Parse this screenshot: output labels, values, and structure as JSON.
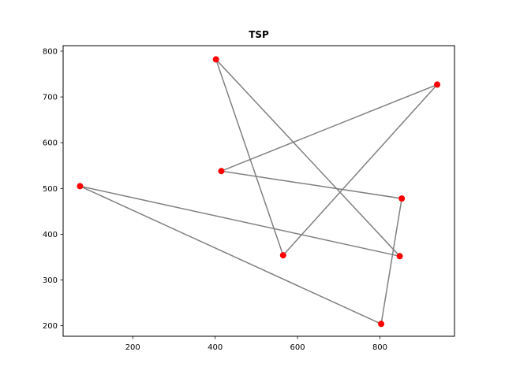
{
  "chart_data": {
    "type": "scatter",
    "title": "TSP",
    "xlabel": "",
    "ylabel": "",
    "xlim": [
      31,
      981
    ],
    "ylim": [
      177,
      812
    ],
    "x_ticks": [
      200,
      400,
      600,
      800
    ],
    "y_ticks": [
      200,
      300,
      400,
      500,
      600,
      700,
      800
    ],
    "grid": false,
    "points": [
      {
        "x": 72,
        "y": 505
      },
      {
        "x": 402,
        "y": 782
      },
      {
        "x": 415,
        "y": 538
      },
      {
        "x": 565,
        "y": 354
      },
      {
        "x": 803,
        "y": 204
      },
      {
        "x": 848,
        "y": 352
      },
      {
        "x": 853,
        "y": 478
      },
      {
        "x": 939,
        "y": 727
      }
    ],
    "route": [
      {
        "x": 72,
        "y": 505
      },
      {
        "x": 848,
        "y": 352
      },
      {
        "x": 402,
        "y": 782
      },
      {
        "x": 565,
        "y": 354
      },
      {
        "x": 939,
        "y": 727
      },
      {
        "x": 415,
        "y": 538
      },
      {
        "x": 853,
        "y": 478
      },
      {
        "x": 803,
        "y": 204
      },
      {
        "x": 72,
        "y": 505
      }
    ],
    "colors": {
      "route": "#808080",
      "points": "#ff0000",
      "axes": "#000000"
    }
  }
}
